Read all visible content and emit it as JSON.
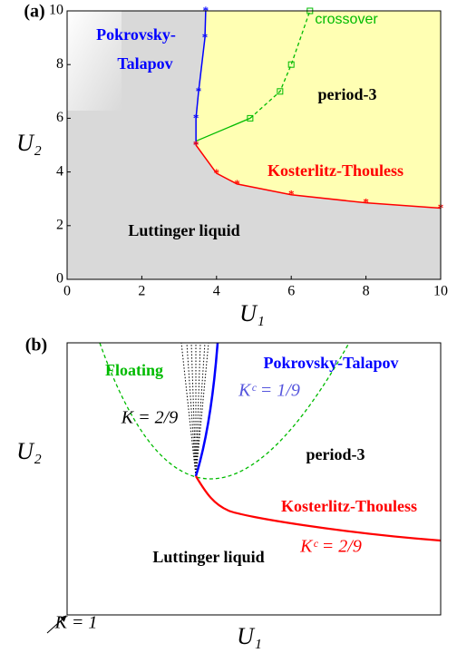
{
  "chart_data": [
    {
      "type": "line",
      "label": "(a)",
      "xlabel": "U₁",
      "ylabel": "U₂",
      "xlim": [
        0,
        10
      ],
      "ylim": [
        0,
        10
      ],
      "xticks": [
        0,
        2,
        4,
        6,
        8,
        10
      ],
      "yticks": [
        0,
        2,
        4,
        6,
        8,
        10
      ],
      "background_color": "#d9d9d9",
      "region_color": "#ffffb3",
      "series": [
        {
          "color": "#0000ff",
          "marker": "star",
          "dashed": false,
          "x": [
            3.45,
            3.45,
            3.52,
            3.69,
            3.71
          ],
          "y": [
            5,
            6,
            7,
            9,
            10
          ]
        },
        {
          "color": "#ff0000",
          "marker": "star",
          "dashed": false,
          "x": [
            3.45,
            4,
            4.55,
            6,
            8,
            10
          ],
          "y": [
            5,
            3.95,
            3.55,
            3.15,
            2.85,
            2.65
          ]
        },
        {
          "color": "#00bb00",
          "marker": "square",
          "dashed": true,
          "x": [
            3.45,
            4.9,
            5.7,
            6,
            6.5
          ],
          "y": [
            5.15,
            6,
            7,
            8,
            10
          ]
        }
      ],
      "annotations": [
        {
          "text": "Pokrovsky-",
          "color": "#0000ff"
        },
        {
          "text": "Talapov",
          "color": "#0000ff"
        },
        {
          "text": "crossover",
          "color": "#00bb00"
        },
        {
          "text": "period-3",
          "color": "#000000"
        },
        {
          "text": "Kosterlitz-Thouless",
          "color": "#ff0000"
        },
        {
          "text": "Luttinger liquid",
          "color": "#000000"
        }
      ]
    },
    {
      "type": "schematic",
      "label": "(b)",
      "xlabel": "U₁",
      "ylabel": "U₂",
      "annotations": [
        {
          "text": "Floating",
          "color": "#00bb00"
        },
        {
          "text": "Pokrovsky-Talapov",
          "color": "#0000ff"
        },
        {
          "text": "Kᶜ = 1/9",
          "color": "#5555dd"
        },
        {
          "text": "K = 2/9",
          "color": "#000000"
        },
        {
          "text": "period-3",
          "color": "#000000"
        },
        {
          "text": "Kosterlitz-Thouless",
          "color": "#ff0000"
        },
        {
          "text": "Kᶜ = 2/9",
          "color": "#ff0000"
        },
        {
          "text": "Luttinger liquid",
          "color": "#000000"
        },
        {
          "text": "K = 1",
          "color": "#000000"
        }
      ]
    }
  ]
}
